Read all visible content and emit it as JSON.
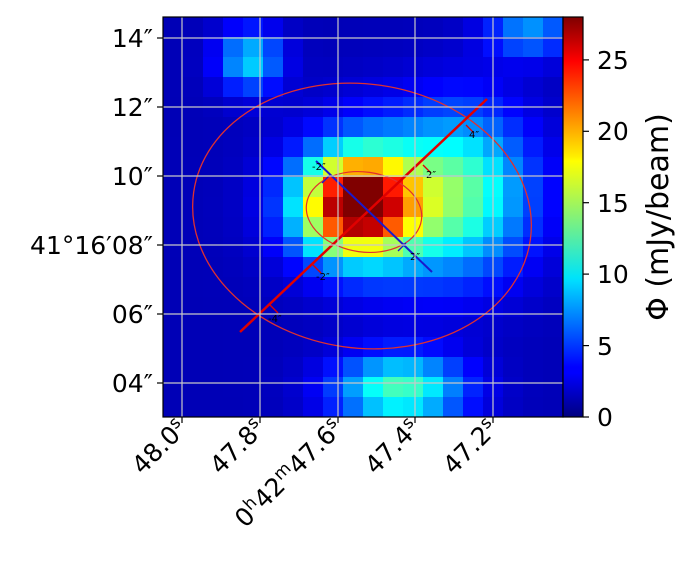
{
  "chart_data": {
    "type": "heatmap",
    "title": "",
    "xlabel": "",
    "ylabel": "",
    "colormap": "jet",
    "grid": true,
    "x_ticks": [
      {
        "label": "48.0",
        "sup": "s"
      },
      {
        "label": "47.8",
        "sup": "s"
      },
      {
        "label": "0",
        "sup": "h",
        "label2": "42",
        "sup2": "m",
        "label3": "47.6",
        "sup3": "s"
      },
      {
        "label": "47.4",
        "sup": "s"
      },
      {
        "label": "47.2",
        "sup": "s"
      }
    ],
    "y_ticks": [
      "14″",
      "12″",
      "10″",
      "41°16′08″",
      "06″",
      "04″"
    ],
    "colorbar": {
      "label": "Φ (mJy/beam)",
      "range": [
        0,
        28
      ],
      "ticks": [
        "0",
        "5",
        "10",
        "15",
        "20",
        "25"
      ]
    },
    "grid_size": [
      20,
      20
    ],
    "overlays": {
      "major_axis_color": "#e00000",
      "minor_axis_color": "#1a1acc",
      "ellipse_color": "#e03030",
      "contour_color": "#000000",
      "axis_tick_labels": [
        "2″",
        "4″",
        "-2″",
        "-4″"
      ]
    }
  }
}
